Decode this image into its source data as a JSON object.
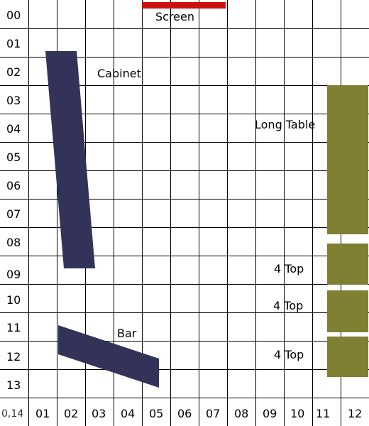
{
  "plan": {
    "row_labels": [
      "00",
      "01",
      "02",
      "03",
      "04",
      "05",
      "06",
      "07",
      "08",
      "09",
      "10",
      "11",
      "12",
      "13"
    ],
    "corner_label": "0,14",
    "col_labels": [
      "01",
      "02",
      "03",
      "04",
      "05",
      "06",
      "07",
      "08",
      "09",
      "10",
      "11",
      "12"
    ]
  },
  "colors": {
    "grid": "#000000",
    "screen": "#cc1111",
    "dark_furniture": "#33335a",
    "table": "#808033",
    "background": "#ffffff"
  },
  "items": {
    "screen_label": "Screen",
    "cabinet_label": "Cabinet",
    "long_table_label": "Long Table",
    "four_top_1_label": "4 Top",
    "four_top_2_label": "4 Top",
    "four_top_3_label": "4 Top",
    "bar_label": "Bar"
  }
}
